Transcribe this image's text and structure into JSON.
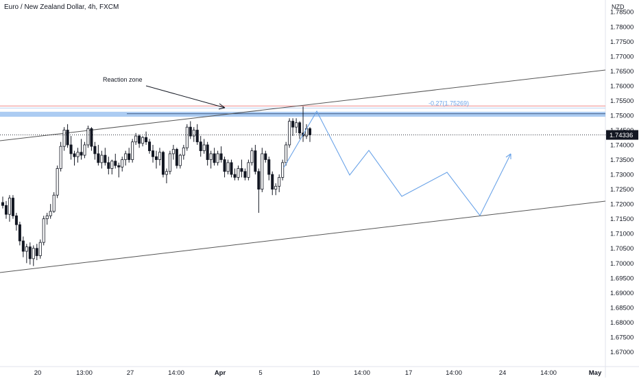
{
  "header": {
    "title": "Euro / New Zealand Dollar, 4h, FXCM",
    "currency": "NZD"
  },
  "chart_data": {
    "type": "candlestick",
    "title": "Euro / New Zealand Dollar, 4h, FXCM",
    "ylim": [
      1.665,
      1.789
    ],
    "y_ticks": [
      "1.78500",
      "1.78000",
      "1.77500",
      "1.77000",
      "1.76500",
      "1.76000",
      "1.75500",
      "1.75000",
      "1.74500",
      "1.74000",
      "1.73500",
      "1.73000",
      "1.72500",
      "1.72000",
      "1.71500",
      "1.71000",
      "1.70500",
      "1.70000",
      "1.69500",
      "1.69000",
      "1.68500",
      "1.68000",
      "1.67500",
      "1.67000"
    ],
    "x_ticks": [
      "20",
      "13:00",
      "27",
      "14:00",
      "Apr",
      "5",
      "10",
      "14:00",
      "17",
      "14:00",
      "24",
      "14:00",
      "May"
    ],
    "x_ticks_bold": [
      "Apr",
      "May"
    ],
    "candles": [
      {
        "o": 1.7205,
        "h": 1.7225,
        "l": 1.7185,
        "c": 1.7195
      },
      {
        "o": 1.7195,
        "h": 1.721,
        "l": 1.715,
        "c": 1.7165
      },
      {
        "o": 1.7165,
        "h": 1.723,
        "l": 1.714,
        "c": 1.722
      },
      {
        "o": 1.722,
        "h": 1.723,
        "l": 1.715,
        "c": 1.716
      },
      {
        "o": 1.716,
        "h": 1.717,
        "l": 1.711,
        "c": 1.713
      },
      {
        "o": 1.713,
        "h": 1.714,
        "l": 1.706,
        "c": 1.7075
      },
      {
        "o": 1.7075,
        "h": 1.709,
        "l": 1.702,
        "c": 1.704
      },
      {
        "o": 1.704,
        "h": 1.7065,
        "l": 1.7,
        "c": 1.7055
      },
      {
        "o": 1.7055,
        "h": 1.707,
        "l": 1.6995,
        "c": 1.7015
      },
      {
        "o": 1.7015,
        "h": 1.706,
        "l": 1.699,
        "c": 1.705
      },
      {
        "o": 1.705,
        "h": 1.7065,
        "l": 1.701,
        "c": 1.7025
      },
      {
        "o": 1.7025,
        "h": 1.708,
        "l": 1.7015,
        "c": 1.707
      },
      {
        "o": 1.707,
        "h": 1.716,
        "l": 1.706,
        "c": 1.715
      },
      {
        "o": 1.715,
        "h": 1.717,
        "l": 1.713,
        "c": 1.716
      },
      {
        "o": 1.716,
        "h": 1.72,
        "l": 1.715,
        "c": 1.7175
      },
      {
        "o": 1.7175,
        "h": 1.724,
        "l": 1.717,
        "c": 1.723
      },
      {
        "o": 1.723,
        "h": 1.733,
        "l": 1.722,
        "c": 1.732
      },
      {
        "o": 1.732,
        "h": 1.741,
        "l": 1.731,
        "c": 1.7395
      },
      {
        "o": 1.7395,
        "h": 1.746,
        "l": 1.738,
        "c": 1.745
      },
      {
        "o": 1.745,
        "h": 1.747,
        "l": 1.739,
        "c": 1.74
      },
      {
        "o": 1.74,
        "h": 1.743,
        "l": 1.735,
        "c": 1.737
      },
      {
        "o": 1.737,
        "h": 1.738,
        "l": 1.733,
        "c": 1.736
      },
      {
        "o": 1.736,
        "h": 1.739,
        "l": 1.734,
        "c": 1.7375
      },
      {
        "o": 1.7375,
        "h": 1.742,
        "l": 1.735,
        "c": 1.7365
      },
      {
        "o": 1.7365,
        "h": 1.741,
        "l": 1.7355,
        "c": 1.74
      },
      {
        "o": 1.74,
        "h": 1.7465,
        "l": 1.739,
        "c": 1.7455
      },
      {
        "o": 1.7455,
        "h": 1.746,
        "l": 1.738,
        "c": 1.7395
      },
      {
        "o": 1.7395,
        "h": 1.741,
        "l": 1.735,
        "c": 1.737
      },
      {
        "o": 1.737,
        "h": 1.74,
        "l": 1.733,
        "c": 1.734
      },
      {
        "o": 1.734,
        "h": 1.738,
        "l": 1.732,
        "c": 1.7365
      },
      {
        "o": 1.7365,
        "h": 1.739,
        "l": 1.733,
        "c": 1.734
      },
      {
        "o": 1.734,
        "h": 1.736,
        "l": 1.73,
        "c": 1.732
      },
      {
        "o": 1.732,
        "h": 1.735,
        "l": 1.73,
        "c": 1.7345
      },
      {
        "o": 1.7345,
        "h": 1.737,
        "l": 1.732,
        "c": 1.733
      },
      {
        "o": 1.733,
        "h": 1.734,
        "l": 1.729,
        "c": 1.7325
      },
      {
        "o": 1.7325,
        "h": 1.736,
        "l": 1.731,
        "c": 1.735
      },
      {
        "o": 1.735,
        "h": 1.738,
        "l": 1.733,
        "c": 1.737
      },
      {
        "o": 1.737,
        "h": 1.739,
        "l": 1.734,
        "c": 1.735
      },
      {
        "o": 1.735,
        "h": 1.742,
        "l": 1.734,
        "c": 1.741
      },
      {
        "o": 1.741,
        "h": 1.744,
        "l": 1.74,
        "c": 1.743
      },
      {
        "o": 1.743,
        "h": 1.7435,
        "l": 1.739,
        "c": 1.7405
      },
      {
        "o": 1.7405,
        "h": 1.743,
        "l": 1.7395,
        "c": 1.7425
      },
      {
        "o": 1.7425,
        "h": 1.7445,
        "l": 1.74,
        "c": 1.741
      },
      {
        "o": 1.741,
        "h": 1.742,
        "l": 1.737,
        "c": 1.738
      },
      {
        "o": 1.738,
        "h": 1.74,
        "l": 1.734,
        "c": 1.736
      },
      {
        "o": 1.736,
        "h": 1.738,
        "l": 1.732,
        "c": 1.735
      },
      {
        "o": 1.735,
        "h": 1.739,
        "l": 1.733,
        "c": 1.7375
      },
      {
        "o": 1.7375,
        "h": 1.738,
        "l": 1.729,
        "c": 1.73
      },
      {
        "o": 1.73,
        "h": 1.732,
        "l": 1.727,
        "c": 1.731
      },
      {
        "o": 1.731,
        "h": 1.738,
        "l": 1.73,
        "c": 1.737
      },
      {
        "o": 1.737,
        "h": 1.74,
        "l": 1.735,
        "c": 1.7385
      },
      {
        "o": 1.7385,
        "h": 1.739,
        "l": 1.732,
        "c": 1.733
      },
      {
        "o": 1.733,
        "h": 1.737,
        "l": 1.732,
        "c": 1.7365
      },
      {
        "o": 1.7365,
        "h": 1.74,
        "l": 1.735,
        "c": 1.739
      },
      {
        "o": 1.739,
        "h": 1.747,
        "l": 1.738,
        "c": 1.746
      },
      {
        "o": 1.746,
        "h": 1.748,
        "l": 1.742,
        "c": 1.743
      },
      {
        "o": 1.743,
        "h": 1.746,
        "l": 1.741,
        "c": 1.745
      },
      {
        "o": 1.745,
        "h": 1.747,
        "l": 1.74,
        "c": 1.741
      },
      {
        "o": 1.741,
        "h": 1.743,
        "l": 1.736,
        "c": 1.738
      },
      {
        "o": 1.738,
        "h": 1.742,
        "l": 1.737,
        "c": 1.74
      },
      {
        "o": 1.74,
        "h": 1.741,
        "l": 1.733,
        "c": 1.735
      },
      {
        "o": 1.735,
        "h": 1.738,
        "l": 1.732,
        "c": 1.737
      },
      {
        "o": 1.737,
        "h": 1.739,
        "l": 1.733,
        "c": 1.734
      },
      {
        "o": 1.734,
        "h": 1.738,
        "l": 1.733,
        "c": 1.737
      },
      {
        "o": 1.737,
        "h": 1.7395,
        "l": 1.734,
        "c": 1.735
      },
      {
        "o": 1.735,
        "h": 1.736,
        "l": 1.729,
        "c": 1.731
      },
      {
        "o": 1.731,
        "h": 1.735,
        "l": 1.73,
        "c": 1.734
      },
      {
        "o": 1.734,
        "h": 1.735,
        "l": 1.729,
        "c": 1.73
      },
      {
        "o": 1.73,
        "h": 1.732,
        "l": 1.728,
        "c": 1.729
      },
      {
        "o": 1.729,
        "h": 1.733,
        "l": 1.728,
        "c": 1.732
      },
      {
        "o": 1.732,
        "h": 1.735,
        "l": 1.729,
        "c": 1.731
      },
      {
        "o": 1.731,
        "h": 1.732,
        "l": 1.728,
        "c": 1.729
      },
      {
        "o": 1.729,
        "h": 1.735,
        "l": 1.728,
        "c": 1.734
      },
      {
        "o": 1.734,
        "h": 1.739,
        "l": 1.733,
        "c": 1.738
      },
      {
        "o": 1.738,
        "h": 1.74,
        "l": 1.73,
        "c": 1.731
      },
      {
        "o": 1.731,
        "h": 1.732,
        "l": 1.717,
        "c": 1.725
      },
      {
        "o": 1.725,
        "h": 1.739,
        "l": 1.724,
        "c": 1.737
      },
      {
        "o": 1.737,
        "h": 1.738,
        "l": 1.734,
        "c": 1.735
      },
      {
        "o": 1.735,
        "h": 1.736,
        "l": 1.728,
        "c": 1.73
      },
      {
        "o": 1.73,
        "h": 1.731,
        "l": 1.723,
        "c": 1.725
      },
      {
        "o": 1.725,
        "h": 1.727,
        "l": 1.723,
        "c": 1.726
      },
      {
        "o": 1.726,
        "h": 1.73,
        "l": 1.724,
        "c": 1.729
      },
      {
        "o": 1.729,
        "h": 1.735,
        "l": 1.728,
        "c": 1.734
      },
      {
        "o": 1.734,
        "h": 1.741,
        "l": 1.733,
        "c": 1.74
      },
      {
        "o": 1.74,
        "h": 1.749,
        "l": 1.739,
        "c": 1.748
      },
      {
        "o": 1.748,
        "h": 1.749,
        "l": 1.743,
        "c": 1.746
      },
      {
        "o": 1.746,
        "h": 1.749,
        "l": 1.744,
        "c": 1.7475
      },
      {
        "o": 1.7475,
        "h": 1.748,
        "l": 1.742,
        "c": 1.744
      },
      {
        "o": 1.744,
        "h": 1.753,
        "l": 1.741,
        "c": 1.743
      },
      {
        "o": 1.743,
        "h": 1.747,
        "l": 1.742,
        "c": 1.7455
      },
      {
        "o": 1.7455,
        "h": 1.746,
        "l": 1.741,
        "c": 1.7434
      }
    ],
    "current_price": "1.74336",
    "reaction_zone": {
      "low": 1.7495,
      "high": 1.7512
    },
    "fib_level": {
      "label": "-0.27(1.75269)",
      "value": 1.75269
    },
    "annotation": "Reaction zone",
    "colors": {
      "up": "#ffffff",
      "down": "#131722",
      "projection": "#6aa3e8",
      "zone": "#9ec3f0",
      "fib_red": "#f08a8a",
      "price_label_bg": "#131722",
      "axis_text": "#131722"
    }
  }
}
